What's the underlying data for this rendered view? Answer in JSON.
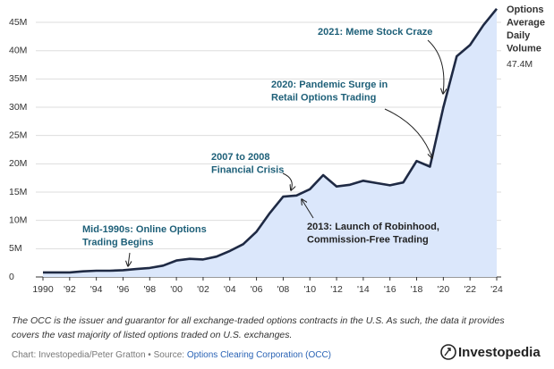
{
  "chart_data": {
    "type": "area",
    "series": [
      {
        "name": "Options Average Daily Volume",
        "color": "#1f2a44",
        "fill": "#dbe7fb",
        "values": [
          800000,
          800000,
          800000,
          1000000,
          1100000,
          1100000,
          1200000,
          1400000,
          1600000,
          2000000,
          2900000,
          3200000,
          3100000,
          3600000,
          4600000,
          5800000,
          8000000,
          11300000,
          14200000,
          14400000,
          15500000,
          18000000,
          16000000,
          16300000,
          17000000,
          16600000,
          16200000,
          16700000,
          20500000,
          19500000,
          30000000,
          39000000,
          41000000,
          44500000,
          47400000
        ],
        "value_labels": [
          null,
          null,
          null,
          null,
          null,
          null,
          null,
          null,
          null,
          null,
          null,
          null,
          null,
          null,
          null,
          null,
          null,
          null,
          null,
          null,
          null,
          null,
          null,
          null,
          null,
          null,
          null,
          null,
          null,
          null,
          null,
          null,
          null,
          null,
          "47.4M"
        ]
      }
    ],
    "x": [
      1990,
      1991,
      1992,
      1993,
      1994,
      1995,
      1996,
      1997,
      1998,
      1999,
      2000,
      2001,
      2002,
      2003,
      2004,
      2005,
      2006,
      2007,
      2008,
      2009,
      2010,
      2011,
      2012,
      2013,
      2014,
      2015,
      2016,
      2017,
      2018,
      2019,
      2020,
      2021,
      2022,
      2023,
      2024
    ],
    "xlim": [
      1990,
      2024
    ],
    "xticks": [
      1990,
      {
        "value": 1992,
        "label": "'92"
      },
      {
        "value": 1994,
        "label": "'94"
      },
      {
        "value": 1996,
        "label": "'96"
      },
      {
        "value": 1998,
        "label": "'98"
      },
      {
        "value": 2000,
        "label": "'00"
      },
      {
        "value": 2002,
        "label": "'02"
      },
      {
        "value": 2004,
        "label": "'04"
      },
      {
        "value": 2006,
        "label": "'06"
      },
      {
        "value": 2008,
        "label": "'08"
      },
      {
        "value": 2010,
        "label": "'10"
      },
      {
        "value": 2012,
        "label": "'12"
      },
      {
        "value": 2014,
        "label": "'14"
      },
      {
        "value": 2016,
        "label": "'16"
      },
      {
        "value": 2018,
        "label": "'18"
      },
      {
        "value": 2020,
        "label": "'20"
      },
      {
        "value": 2022,
        "label": "'22"
      },
      {
        "value": 2024,
        "label": "'24"
      }
    ],
    "ylim": [
      0,
      47500000
    ],
    "yticks": [
      0,
      {
        "value": 5000000,
        "label": "5M"
      },
      {
        "value": 10000000,
        "label": "10M"
      },
      {
        "value": 15000000,
        "label": "15M"
      },
      {
        "value": 20000000,
        "label": "20M"
      },
      {
        "value": 25000000,
        "label": "25M"
      },
      {
        "value": 30000000,
        "label": "30M"
      },
      {
        "value": 35000000,
        "label": "35M"
      },
      {
        "value": 40000000,
        "label": "40M"
      },
      {
        "value": 45000000,
        "label": "45M"
      }
    ],
    "grid": true,
    "series_label_lines": [
      "Options",
      "Average",
      "Daily",
      "Volume"
    ],
    "annotations": [
      {
        "lines": [
          "Mid-1990s: Online Options",
          "Trading Begins"
        ],
        "color": "#1d5f78"
      },
      {
        "lines": [
          "2007 to 2008",
          "Financial Crisis"
        ],
        "color": "#1d5f78"
      },
      {
        "lines": [
          "2013: Launch of Robinhood,",
          "Commission-Free Trading"
        ],
        "color": "#222222"
      },
      {
        "lines": [
          "2020: Pandemic Surge in",
          "Retail Options Trading"
        ],
        "color": "#1d5f78"
      },
      {
        "lines": [
          "2021: Meme Stock Craze"
        ],
        "color": "#1d5f78"
      }
    ],
    "note": [
      "The OCC is the issuer and guarantor for all exchange-traded options contracts in the U.S. As such, the data it provides",
      "covers the vast majority of listed options traded on U.S. exchanges."
    ],
    "credit": "Chart: Investopedia/Peter Gratton • Source: ",
    "source_link": "Options Clearing Corporation (OCC)",
    "brand": "Investopedia"
  }
}
